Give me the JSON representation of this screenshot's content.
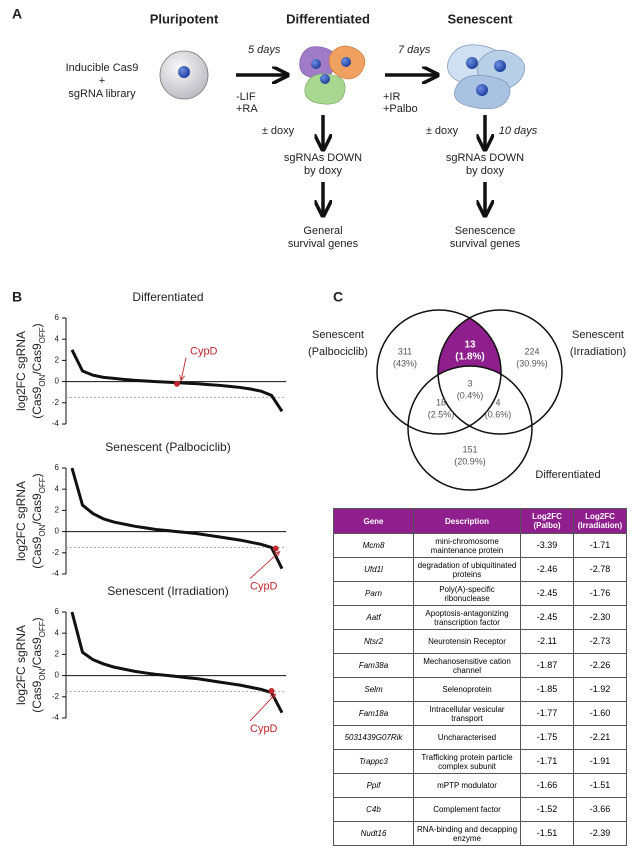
{
  "panel_a": {
    "label": "A",
    "stages": [
      "Pluripotent",
      "Differentiated",
      "Senescent"
    ],
    "start_text": [
      "Inducible Cas9",
      "+",
      "sgRNA library"
    ],
    "step1": {
      "time": "5 days",
      "conditions": [
        "-LIF",
        "+RA"
      ]
    },
    "step2": {
      "time": "7 days",
      "conditions": [
        "+IR",
        "+Palbo"
      ]
    },
    "branch1": {
      "treatment": "± doxy",
      "result": [
        "sgRNAs DOWN",
        "by doxy"
      ],
      "outcome": [
        "General",
        "survival genes"
      ]
    },
    "branch2": {
      "treatment": "± doxy",
      "time": "10 days",
      "result": [
        "sgRNAs DOWN",
        "by doxy"
      ],
      "outcome": [
        "Senescence",
        "survival genes"
      ]
    }
  },
  "panel_b": {
    "label": "B",
    "ylabel": {
      "line1": "log2FC sgRNA",
      "line2": [
        "(Cas9",
        "ON",
        "/Cas9",
        "OFF",
        ")"
      ]
    },
    "charts": [
      {
        "type": "line",
        "title": "Differentiated",
        "color": "#111111",
        "x": [
          0,
          5,
          10,
          15,
          20,
          25,
          30,
          35,
          40,
          45,
          50,
          55,
          60,
          65,
          70,
          75,
          80,
          85,
          90,
          95,
          100
        ],
        "values": [
          3.0,
          1.0,
          0.6,
          0.4,
          0.3,
          0.2,
          0.12,
          0.06,
          0.0,
          -0.05,
          -0.1,
          -0.15,
          -0.2,
          -0.28,
          -0.35,
          -0.45,
          -0.55,
          -0.7,
          -0.9,
          -1.3,
          -2.8
        ],
        "xlim": [
          0,
          100
        ],
        "ylim": [
          -4,
          6
        ],
        "yticks": [
          -4,
          -2,
          0,
          2,
          4,
          6
        ],
        "threshold": -1.5,
        "annotation": {
          "text": "CypD",
          "x": 50,
          "y": -0.2,
          "color": "#c0272d"
        }
      },
      {
        "type": "line",
        "title": "Senescent (Palbociclib)",
        "color": "#111111",
        "x": [
          0,
          5,
          10,
          15,
          20,
          25,
          30,
          35,
          40,
          45,
          50,
          55,
          60,
          65,
          70,
          75,
          80,
          85,
          90,
          95,
          100
        ],
        "values": [
          6.0,
          2.5,
          1.7,
          1.2,
          0.9,
          0.7,
          0.5,
          0.35,
          0.2,
          0.1,
          0.0,
          -0.1,
          -0.2,
          -0.35,
          -0.5,
          -0.65,
          -0.8,
          -1.0,
          -1.2,
          -1.5,
          -3.5
        ],
        "xlim": [
          0,
          100
        ],
        "ylim": [
          -4,
          6
        ],
        "yticks": [
          -4,
          -2,
          0,
          2,
          4,
          6
        ],
        "threshold": -1.5,
        "annotation": {
          "text": "CypD",
          "x": 97,
          "y": -1.6,
          "color": "#c0272d"
        }
      },
      {
        "type": "line",
        "title": "Senescent (Irradiation)",
        "color": "#111111",
        "x": [
          0,
          5,
          10,
          15,
          20,
          25,
          30,
          35,
          40,
          45,
          50,
          55,
          60,
          65,
          70,
          75,
          80,
          85,
          90,
          95,
          100
        ],
        "values": [
          6.0,
          2.2,
          1.5,
          1.1,
          0.8,
          0.6,
          0.4,
          0.25,
          0.12,
          0.02,
          -0.08,
          -0.2,
          -0.3,
          -0.45,
          -0.6,
          -0.75,
          -0.9,
          -1.1,
          -1.3,
          -1.6,
          -3.5
        ],
        "xlim": [
          0,
          100
        ],
        "ylim": [
          -4,
          6
        ],
        "yticks": [
          -4,
          -2,
          0,
          2,
          4,
          6
        ],
        "threshold": -1.5,
        "annotation": {
          "text": "CypD",
          "x": 95,
          "y": -1.45,
          "color": "#c0272d"
        }
      }
    ]
  },
  "panel_c": {
    "label": "C",
    "sets": [
      [
        "Senescent",
        "(Palbociclib)"
      ],
      [
        "Senescent",
        "(Irradiation)"
      ],
      [
        "Differentiated"
      ]
    ],
    "regions": {
      "palbo_only": [
        "311",
        "(43%)"
      ],
      "palbo_irr": [
        "13",
        "(1.8%)"
      ],
      "irr_only": [
        "224",
        "(30.9%)"
      ],
      "all": [
        "3",
        "(0.4%)"
      ],
      "palbo_diff": [
        "18",
        "(2.5%)"
      ],
      "irr_diff": [
        "4",
        "(0.6%)"
      ],
      "diff_only": [
        "151",
        "(20.9%)"
      ]
    },
    "table": {
      "header": [
        "Gene",
        "Description",
        "Log2FC (Palbo)",
        "Log2FC (Irradiation)"
      ],
      "rows": [
        [
          "Mcm8",
          "mini-chromosome maintenance protein",
          "-3.39",
          "-1.71"
        ],
        [
          "Ufd1l",
          "degradation of ubiquitinated proteins",
          "-2.46",
          "-2.78"
        ],
        [
          "Parn",
          "Poly(A)-specific ribonuclease",
          "-2.45",
          "-1.76"
        ],
        [
          "Aatf",
          "Apoptosis-antagonizing transcription factor",
          "-2.45",
          "-2.30"
        ],
        [
          "Ntsr2",
          "Neurotensin Receptor",
          "-2.11",
          "-2.73"
        ],
        [
          "Fam38a",
          "Mechanosensitive cation channel",
          "-1.87",
          "-2.26"
        ],
        [
          "Selm",
          "Selenoprotein",
          "-1.85",
          "-1.92"
        ],
        [
          "Fam18a",
          "Intracellular vesicular transport",
          "-1.77",
          "-1.60"
        ],
        [
          "5031439G07Rik",
          "Uncharacterised",
          "-1.75",
          "-2.21"
        ],
        [
          "Trappc3",
          "Trafficking protein particle complex subunit",
          "-1.71",
          "-1.91"
        ],
        [
          "Ppif",
          "mPTP modulator",
          "-1.66",
          "-1.51"
        ],
        [
          "C4b",
          "Complement factor",
          "-1.52",
          "-3.66"
        ],
        [
          "Nudt16",
          "RNA-binding and decapping enzyme",
          "-1.51",
          "-2.39"
        ]
      ]
    }
  }
}
